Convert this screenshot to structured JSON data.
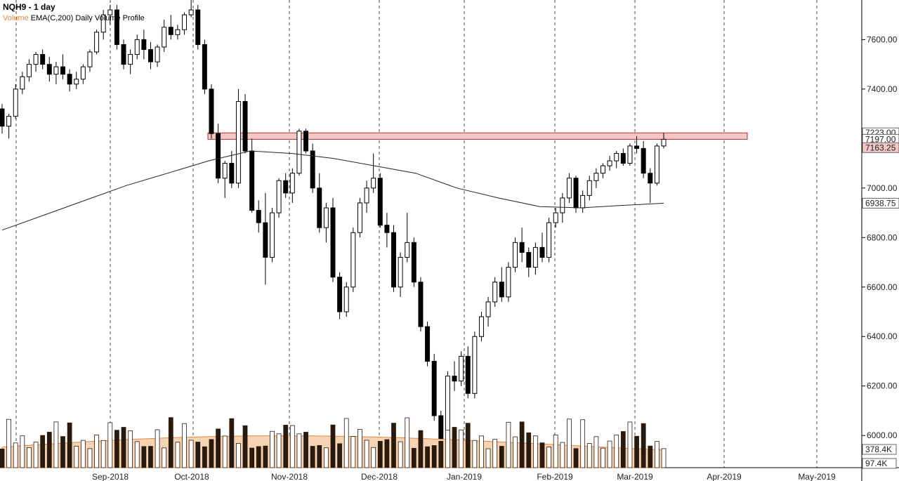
{
  "header": {
    "title": "NQH9 - 1 day",
    "legend_volume": "Volume",
    "legend_rest": "EMA(C,200) Daily Volume Profile"
  },
  "chart_data": {
    "type": "candlestick",
    "x_axis": {
      "tick_labels": [
        "Sep-2018",
        "Oct-2018",
        "Nov-2018",
        "Dec-2018",
        "Jan-2019",
        "Feb-2019",
        "Mar-2019",
        "Apr-2019",
        "May-2019"
      ],
      "start_date": "2018-08-21",
      "end_date": "2019-05-15"
    },
    "y_axis": {
      "range": [
        5870,
        7760
      ],
      "tick_labels": [
        "7600.00",
        "7400.00",
        "7200.00",
        "7000.00",
        "6800.00",
        "6600.00",
        "6400.00",
        "6200.00",
        "6000.00"
      ],
      "ticks": [
        7600,
        7400,
        7200,
        7000,
        6800,
        6600,
        6400,
        6200,
        6000
      ]
    },
    "price_labels": [
      {
        "text": "7223.00",
        "value": 7223,
        "color": "#ffffff",
        "text_color": "#000000"
      },
      {
        "text": "7197.00",
        "value": 7197,
        "color": "#ffffff",
        "text_color": "#000000"
      },
      {
        "text": "7163.25",
        "value": 7163.25,
        "color": "#f4c6c6",
        "text_color": "#000000"
      },
      {
        "text": "6938.75",
        "value": 6938.75,
        "color": "#ffffff",
        "text_color": "#000000"
      }
    ],
    "volume_labels": [
      {
        "text": "378.4K"
      },
      {
        "text": "97.4K"
      }
    ],
    "resistance_zone": {
      "low": 7197,
      "high": 7223,
      "color": "#f4c6c6"
    },
    "ema_line": [
      7000,
      7200,
      7100,
      7050,
      7020,
      7000,
      6960,
      6920,
      6930,
      6938.75
    ],
    "candles": [
      [
        7320,
        7340,
        7220,
        7250
      ],
      [
        7250,
        7300,
        7200,
        7290
      ],
      [
        7290,
        7420,
        7280,
        7400
      ],
      [
        7400,
        7470,
        7380,
        7450
      ],
      [
        7450,
        7520,
        7430,
        7500
      ],
      [
        7500,
        7550,
        7470,
        7540
      ],
      [
        7540,
        7560,
        7480,
        7500
      ],
      [
        7500,
        7530,
        7430,
        7460
      ],
      [
        7460,
        7510,
        7420,
        7490
      ],
      [
        7490,
        7540,
        7440,
        7460
      ],
      [
        7460,
        7480,
        7390,
        7420
      ],
      [
        7420,
        7470,
        7400,
        7440
      ],
      [
        7440,
        7500,
        7420,
        7490
      ],
      [
        7490,
        7560,
        7470,
        7550
      ],
      [
        7550,
        7640,
        7540,
        7630
      ],
      [
        7630,
        7720,
        7600,
        7700
      ],
      [
        7700,
        7740,
        7660,
        7720
      ],
      [
        7720,
        7740,
        7560,
        7580
      ],
      [
        7580,
        7600,
        7480,
        7500
      ],
      [
        7500,
        7560,
        7460,
        7540
      ],
      [
        7540,
        7620,
        7520,
        7600
      ],
      [
        7600,
        7640,
        7520,
        7560
      ],
      [
        7560,
        7590,
        7480,
        7510
      ],
      [
        7510,
        7580,
        7490,
        7570
      ],
      [
        7570,
        7680,
        7550,
        7650
      ],
      [
        7650,
        7700,
        7600,
        7620
      ],
      [
        7620,
        7660,
        7600,
        7640
      ],
      [
        7640,
        7710,
        7620,
        7700
      ],
      [
        7700,
        7760,
        7690,
        7720
      ],
      [
        7720,
        7740,
        7560,
        7580
      ],
      [
        7580,
        7600,
        7380,
        7400
      ],
      [
        7400,
        7420,
        7200,
        7220
      ],
      [
        7220,
        7260,
        7020,
        7040
      ],
      [
        7040,
        7110,
        6960,
        7100
      ],
      [
        7100,
        7150,
        7000,
        7020
      ],
      [
        7020,
        7400,
        7000,
        7350
      ],
      [
        7350,
        7380,
        7140,
        7150
      ],
      [
        7150,
        7200,
        6900,
        6910
      ],
      [
        6910,
        6950,
        6820,
        6860
      ],
      [
        6860,
        6980,
        6610,
        6720
      ],
      [
        6720,
        6920,
        6700,
        6900
      ],
      [
        6900,
        7040,
        6880,
        7030
      ],
      [
        7030,
        7060,
        6960,
        6980
      ],
      [
        6980,
        7080,
        6940,
        7060
      ],
      [
        7060,
        7240,
        7050,
        7230
      ],
      [
        7230,
        7240,
        7140,
        7150
      ],
      [
        7150,
        7180,
        6980,
        7000
      ],
      [
        7000,
        7060,
        6820,
        6840
      ],
      [
        6840,
        6940,
        6780,
        6920
      ],
      [
        6920,
        6960,
        6620,
        6640
      ],
      [
        6640,
        6660,
        6470,
        6500
      ],
      [
        6500,
        6620,
        6480,
        6600
      ],
      [
        6600,
        6840,
        6580,
        6820
      ],
      [
        6820,
        6960,
        6800,
        6940
      ],
      [
        6940,
        7030,
        6900,
        7000
      ],
      [
        7000,
        7140,
        6980,
        7040
      ],
      [
        7040,
        7060,
        6840,
        6850
      ],
      [
        6850,
        6900,
        6760,
        6820
      ],
      [
        6820,
        6850,
        6580,
        6600
      ],
      [
        6600,
        6740,
        6560,
        6720
      ],
      [
        6720,
        6900,
        6700,
        6780
      ],
      [
        6780,
        6800,
        6600,
        6620
      ],
      [
        6620,
        6640,
        6420,
        6440
      ],
      [
        6440,
        6460,
        6280,
        6300
      ],
      [
        6300,
        6330,
        6060,
        6080
      ],
      [
        6080,
        6100,
        5910,
        5940
      ],
      [
        5940,
        6260,
        5920,
        6240
      ],
      [
        6240,
        6300,
        6180,
        6220
      ],
      [
        6220,
        6340,
        6200,
        6320
      ],
      [
        6320,
        6360,
        6150,
        6170
      ],
      [
        6170,
        6420,
        6150,
        6400
      ],
      [
        6400,
        6500,
        6380,
        6480
      ],
      [
        6480,
        6560,
        6440,
        6540
      ],
      [
        6540,
        6640,
        6520,
        6620
      ],
      [
        6620,
        6680,
        6540,
        6560
      ],
      [
        6560,
        6700,
        6540,
        6680
      ],
      [
        6680,
        6800,
        6660,
        6780
      ],
      [
        6780,
        6840,
        6700,
        6740
      ],
      [
        6740,
        6760,
        6640,
        6680
      ],
      [
        6680,
        6780,
        6650,
        6760
      ],
      [
        6760,
        6820,
        6700,
        6720
      ],
      [
        6720,
        6880,
        6700,
        6860
      ],
      [
        6860,
        6920,
        6840,
        6900
      ],
      [
        6900,
        6980,
        6860,
        6960
      ],
      [
        6960,
        7060,
        6940,
        7040
      ],
      [
        7040,
        7050,
        6900,
        6920
      ],
      [
        6920,
        6990,
        6900,
        6970
      ],
      [
        6970,
        7050,
        6950,
        7030
      ],
      [
        7030,
        7080,
        7000,
        7060
      ],
      [
        7060,
        7100,
        7040,
        7090
      ],
      [
        7090,
        7130,
        7070,
        7110
      ],
      [
        7110,
        7150,
        7080,
        7140
      ],
      [
        7140,
        7160,
        7090,
        7100
      ],
      [
        7100,
        7180,
        7090,
        7170
      ],
      [
        7170,
        7210,
        7140,
        7160
      ],
      [
        7160,
        7190,
        7040,
        7060
      ],
      [
        7060,
        7080,
        6940,
        7020
      ],
      [
        7020,
        7180,
        7010,
        7170
      ],
      [
        7170,
        7223,
        7160,
        7197
      ]
    ],
    "volume_max_k": 420
  }
}
